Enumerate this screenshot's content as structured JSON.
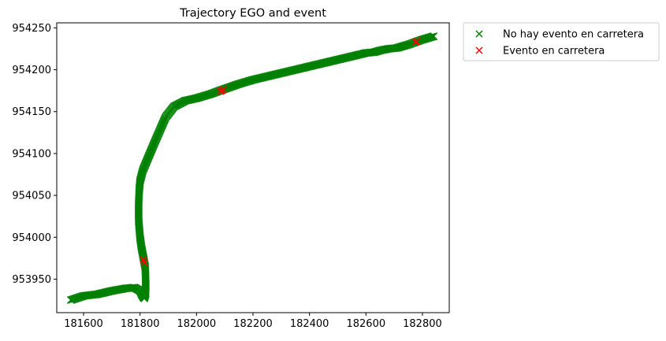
{
  "chart_data": {
    "type": "scatter",
    "title": "Trajectory EGO and event",
    "xlabel": "",
    "ylabel": "",
    "xlim": [
      181505,
      182895
    ],
    "ylim": [
      953910,
      954256
    ],
    "x_ticks": [
      181600,
      181800,
      182000,
      182200,
      182400,
      182600,
      182800
    ],
    "y_ticks": [
      953950,
      954000,
      954050,
      954100,
      954150,
      954200,
      954250
    ],
    "grid": false,
    "legend": {
      "placement": "outside-top-right"
    },
    "marker": "x",
    "series": [
      {
        "name": "No hay evento en carretera",
        "color": "#008000",
        "path": [
          [
            181555,
            953925
          ],
          [
            181600,
            953930
          ],
          [
            181650,
            953932
          ],
          [
            181700,
            953936
          ],
          [
            181750,
            953939
          ],
          [
            181780,
            953940
          ],
          [
            181800,
            953936
          ],
          [
            181810,
            953929
          ],
          [
            181815,
            953927
          ],
          [
            181820,
            953933
          ],
          [
            181820,
            953950
          ],
          [
            181818,
            953965
          ],
          [
            181805,
            953988
          ],
          [
            181800,
            954000
          ],
          [
            181795,
            954020
          ],
          [
            181795,
            954040
          ],
          [
            181797,
            954055
          ],
          [
            181800,
            954067
          ],
          [
            181810,
            954080
          ],
          [
            181850,
            954112
          ],
          [
            181890,
            954143
          ],
          [
            181920,
            954156
          ],
          [
            181960,
            954163
          ],
          [
            182000,
            954166
          ],
          [
            182050,
            954171
          ],
          [
            182090,
            954176
          ],
          [
            182150,
            954183
          ],
          [
            182200,
            954188
          ],
          [
            182300,
            954196
          ],
          [
            182400,
            954204
          ],
          [
            182500,
            954212
          ],
          [
            182600,
            954220
          ],
          [
            182630,
            954221
          ],
          [
            182650,
            954223
          ],
          [
            182680,
            954225
          ],
          [
            182710,
            954226
          ],
          [
            182750,
            954230
          ],
          [
            182800,
            954236
          ],
          [
            182840,
            954240
          ]
        ]
      },
      {
        "name": "Evento en carretera",
        "color": "#ff0000",
        "points": [
          [
            182090,
            954175
          ],
          [
            182095,
            954176
          ],
          [
            182085,
            954174
          ],
          [
            182775,
            954233
          ],
          [
            182780,
            954234
          ],
          [
            181812,
            953973
          ],
          [
            181815,
            953970
          ]
        ]
      }
    ]
  }
}
